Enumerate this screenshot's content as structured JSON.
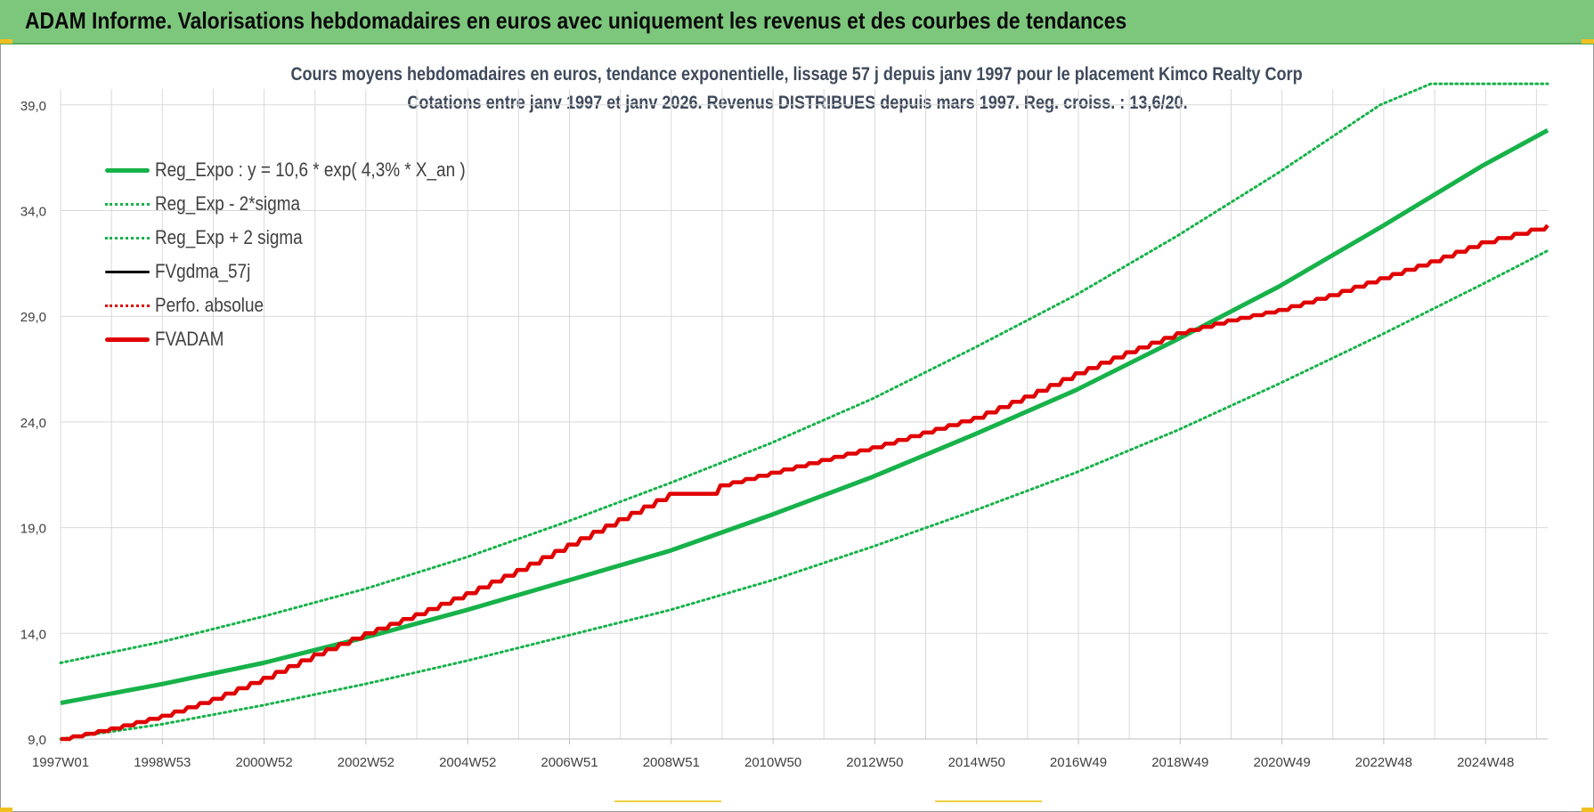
{
  "window": {
    "banner_title": "ADAM Informe. Valorisations hebdomadaires en euros avec uniquement les revenus et des courbes de tendances"
  },
  "colors": {
    "banner": "#7dc77d",
    "trend_green": "#17b24a",
    "adam_red": "#e00000",
    "gdma_black": "#000000",
    "grid": "#d9d9d9"
  },
  "legend": {
    "items": [
      {
        "label": "Reg_Expo : y = 10,6 * exp( 4,3% *  X_an )",
        "color": "#17b24a",
        "style": "solid"
      },
      {
        "label": "Reg_Exp - 2*sigma",
        "color": "#17b24a",
        "style": "dotted"
      },
      {
        "label": "Reg_Exp + 2 sigma",
        "color": "#17b24a",
        "style": "dotted"
      },
      {
        "label": "FVgdma_57j",
        "color": "#000000",
        "style": "solid"
      },
      {
        "label": "Perfo. absolue",
        "color": "#e00000",
        "style": "dotted"
      },
      {
        "label": "FVADAM",
        "color": "#e00000",
        "style": "solid"
      }
    ]
  },
  "chart_data": {
    "type": "line",
    "title": "Cours moyens hebdomadaires en euros, tendance exponentielle, lissage 57 j depuis janv 1997  pour le placement Kimco Realty Corp",
    "subtitle": "Cotations entre janv 1997 et janv 2026. Revenus DISTRIBUES depuis mars 1997. Reg. croiss. : 13,6/20.",
    "xlabel": "",
    "ylabel": "",
    "x_tick_labels": [
      "1997W01",
      "1998W53",
      "2000W52",
      "2002W52",
      "2004W52",
      "2006W51",
      "2008W51",
      "2010W50",
      "2012W50",
      "2014W50",
      "2016W49",
      "2018W49",
      "2020W49",
      "2022W48",
      "2024W48"
    ],
    "y_tick_labels": [
      "9,0",
      "14,0",
      "19,0",
      "24,0",
      "29,0",
      "34,0",
      "39,0"
    ],
    "x_range_years": [
      1997.0,
      2026.3
    ],
    "ylim": [
      9.0,
      40.0
    ],
    "grid": true,
    "legend_position": "top-left",
    "series": [
      {
        "name": "Reg_Expo : y = 10,6 * exp( 4,3% *  X_an )",
        "style": "solid",
        "x": [
          1997.0,
          1999.0,
          2001.0,
          2003.0,
          2005.0,
          2007.0,
          2009.0,
          2011.0,
          2013.0,
          2015.0,
          2017.0,
          2019.0,
          2021.0,
          2023.0,
          2025.0,
          2026.3
        ],
        "y": [
          10.7,
          11.6,
          12.6,
          13.8,
          15.1,
          16.5,
          17.9,
          19.6,
          21.4,
          23.4,
          25.5,
          27.9,
          30.4,
          33.2,
          36.1,
          37.8
        ]
      },
      {
        "name": "Reg_Exp - 2*sigma",
        "style": "dotted",
        "x": [
          1997.0,
          1999.0,
          2001.0,
          2003.0,
          2005.0,
          2007.0,
          2009.0,
          2011.0,
          2013.0,
          2015.0,
          2017.0,
          2019.0,
          2021.0,
          2023.0,
          2025.0,
          2026.3
        ],
        "y": [
          9.0,
          9.7,
          10.6,
          11.6,
          12.7,
          13.9,
          15.1,
          16.5,
          18.1,
          19.8,
          21.6,
          23.6,
          25.8,
          28.1,
          30.5,
          32.1
        ]
      },
      {
        "name": "Reg_Exp + 2 sigma",
        "style": "dotted",
        "x": [
          1997.0,
          1999.0,
          2001.0,
          2003.0,
          2005.0,
          2007.0,
          2009.0,
          2011.0,
          2013.0,
          2015.0,
          2017.0,
          2019.0,
          2021.0,
          2023.0,
          2024.0,
          2025.0,
          2026.3
        ],
        "y": [
          12.6,
          13.6,
          14.8,
          16.1,
          17.6,
          19.3,
          21.1,
          23.0,
          25.1,
          27.5,
          30.0,
          32.8,
          35.8,
          39.0,
          40.0,
          40.0,
          40.0
        ]
      },
      {
        "name": "FVADAM",
        "style": "solid",
        "x": [
          1997.0,
          1998.0,
          1999.0,
          2000.0,
          2001.0,
          2002.0,
          2003.0,
          2004.0,
          2005.0,
          2006.0,
          2007.0,
          2008.0,
          2009.0,
          2010.0,
          2011.0,
          2012.0,
          2013.0,
          2014.0,
          2015.0,
          2016.0,
          2017.0,
          2018.0,
          2019.0,
          2020.0,
          2021.0,
          2022.0,
          2023.0,
          2024.0,
          2025.0,
          2026.3
        ],
        "y": [
          9.0,
          9.5,
          10.1,
          10.9,
          11.9,
          13.0,
          14.0,
          14.9,
          15.9,
          17.0,
          18.2,
          19.4,
          20.6,
          21.0,
          21.6,
          22.2,
          22.8,
          23.5,
          24.2,
          25.2,
          26.3,
          27.3,
          28.2,
          28.8,
          29.3,
          30.0,
          30.8,
          31.6,
          32.5,
          33.3
        ]
      }
    ]
  }
}
